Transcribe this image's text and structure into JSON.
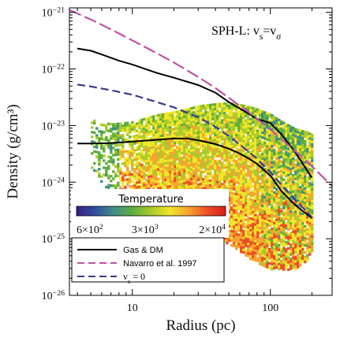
{
  "chart_data": {
    "type": "scatter",
    "annotation": "SPH-L: v_s=v_σ",
    "xlabel": "Radius (pc)",
    "ylabel": "Density (g/cm³)",
    "xscale": "log",
    "yscale": "log",
    "xlim": [
      3.5,
      280
    ],
    "ylim": [
      1e-26,
      1.2e-21
    ],
    "x_ticks": [
      {
        "value": 10,
        "label": "10"
      },
      {
        "value": 100,
        "label": "100"
      }
    ],
    "y_ticks": [
      {
        "value": 1e-21,
        "base": "10",
        "exp": "−21"
      },
      {
        "value": 1e-22,
        "base": "10",
        "exp": "−22"
      },
      {
        "value": 1e-23,
        "base": "10",
        "exp": "−23"
      },
      {
        "value": 1e-24,
        "base": "10",
        "exp": "−24"
      },
      {
        "value": 1e-25,
        "base": "10",
        "exp": "−25"
      },
      {
        "value": 1e-26,
        "base": "10",
        "exp": "−26"
      }
    ],
    "colorbar": {
      "title": "Temperature",
      "scale": "log",
      "range": [
        600,
        20000
      ],
      "ticks": [
        {
          "value": 600,
          "mant": "6×10",
          "exp": "2"
        },
        {
          "value": 3000,
          "mant": "3×10",
          "exp": "3"
        },
        {
          "value": 20000,
          "mant": "2×10",
          "exp": "4"
        }
      ],
      "colors": [
        "#3b1e86",
        "#2f4f9e",
        "#3f8f88",
        "#5fae3e",
        "#a9cb2c",
        "#f1e62a",
        "#f6a331",
        "#ee4f23",
        "#d81c1e"
      ]
    },
    "legend": {
      "placement": "lower-left",
      "entries": [
        {
          "label": "Gas & DM",
          "color": "#000000",
          "style": "solid"
        },
        {
          "label": "Navarro et al. 1997",
          "color": "#c052a4",
          "style": "dashed"
        },
        {
          "label": "v_s = 0",
          "color": "#3b3a8c",
          "style": "dashed"
        }
      ]
    },
    "series": [
      {
        "name": "Gas & DM (upper)",
        "color": "#000000",
        "style": "solid",
        "x": [
          4,
          5,
          6,
          8,
          10,
          15,
          20,
          30,
          40,
          50,
          60,
          70,
          80,
          90,
          100,
          120,
          150,
          200
        ],
        "y": [
          2.3e-22,
          2.1e-22,
          1.8e-22,
          1.4e-22,
          1.2e-22,
          8.5e-23,
          7e-23,
          5.2e-23,
          3.8e-23,
          2.6e-23,
          2e-23,
          1.6e-23,
          1.3e-23,
          1.2e-23,
          1.1e-23,
          7e-24,
          3.5e-24,
          1.2e-24
        ]
      },
      {
        "name": "Gas & DM (lower)",
        "color": "#000000",
        "style": "solid",
        "x": [
          4,
          5,
          7,
          10,
          15,
          20,
          25,
          30,
          40,
          50,
          60,
          70,
          80,
          100,
          120,
          150,
          200
        ],
        "y": [
          4.8e-24,
          4.8e-24,
          4.9e-24,
          5.2e-24,
          5.6e-24,
          5.9e-24,
          5.9e-24,
          5.5e-24,
          4.7e-24,
          3.9e-24,
          3.2e-24,
          2.6e-24,
          2.1e-24,
          1.3e-24,
          7e-25,
          4e-25,
          2.3e-25
        ]
      },
      {
        "name": "Navarro et al. 1997",
        "color": "#c052a4",
        "style": "dashed",
        "x": [
          3.5,
          5,
          7,
          10,
          15,
          20,
          30,
          40,
          50,
          70,
          100,
          150,
          200,
          280
        ],
        "y": [
          1.1e-21,
          7.5e-22,
          5e-22,
          3.2e-22,
          1.9e-22,
          1.3e-22,
          7.2e-23,
          4.6e-23,
          3.1e-23,
          1.7e-23,
          8.5e-24,
          3.6e-24,
          1.9e-24,
          8.5e-25
        ]
      },
      {
        "name": "v_s = 0",
        "color": "#3b3a8c",
        "style": "dashed",
        "x": [
          4,
          5,
          7,
          10,
          15,
          20,
          30,
          40,
          50,
          60,
          70,
          80,
          100,
          120,
          150,
          200
        ],
        "y": [
          5.3e-23,
          4.9e-23,
          4.2e-23,
          3.5e-23,
          2.6e-23,
          2.1e-23,
          1.4e-23,
          9.5e-24,
          6.5e-24,
          4.6e-24,
          3.4e-24,
          2.6e-24,
          1.5e-24,
          9e-25,
          5e-25,
          2.4e-25
        ]
      }
    ],
    "temperature_map": {
      "description_ranges": "gas particle density-radius distribution coloured by temperature",
      "envelope": {
        "x": [
          5,
          7,
          10,
          15,
          20,
          30,
          40,
          50,
          60,
          70,
          80,
          100,
          120,
          150,
          180,
          200
        ],
        "y_top": [
          1.3e-23,
          1.1e-23,
          1.2e-23,
          1.6e-23,
          1.8e-23,
          2.3e-23,
          2.5e-23,
          2.6e-23,
          2.4e-23,
          2.2e-23,
          2e-23,
          1.6e-23,
          1.2e-23,
          9e-24,
          8e-24,
          7e-24
        ],
        "y_bottom": [
          1.8e-24,
          6e-25,
          5e-25,
          3e-25,
          2.2e-25,
          1.6e-25,
          1.1e-25,
          8e-26,
          6e-26,
          4.5e-26,
          3.5e-26,
          3e-26,
          3e-26,
          3e-26,
          4e-26,
          7e-26
        ]
      }
    }
  }
}
